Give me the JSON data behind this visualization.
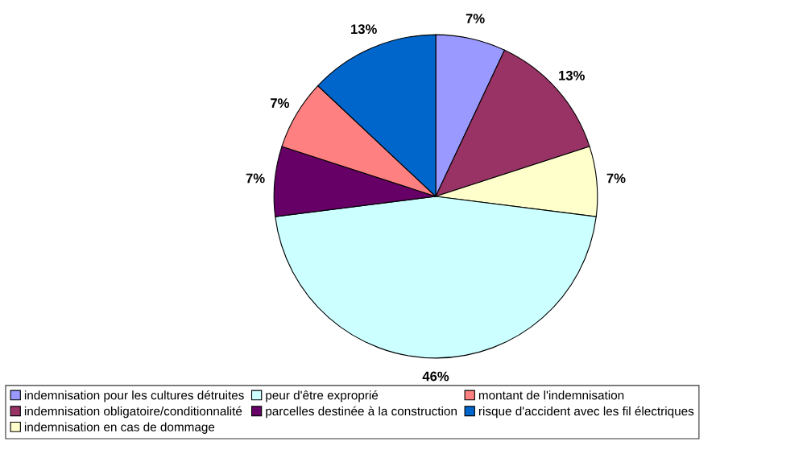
{
  "chart_data": {
    "type": "pie",
    "categories": [
      "indemnisation pour les cultures détruites",
      "indemnisation obligatoire/conditionnalité",
      "indemnisation en cas de dommage",
      "peur d'être exproprié",
      "parcelles destinée à la construction",
      "montant de l'indemnisation",
      "risque d'accident avec les fil électriques"
    ],
    "values": [
      7,
      13,
      7,
      46,
      7,
      7,
      13
    ],
    "colors": [
      "#9999ff",
      "#993366",
      "#ffffcc",
      "#ccffff",
      "#660066",
      "#ff8080",
      "#0066cc"
    ],
    "value_labels": [
      "7%",
      "13%",
      "7%",
      "46%",
      "7%",
      "7%",
      "13%"
    ],
    "legend": "bottom"
  }
}
